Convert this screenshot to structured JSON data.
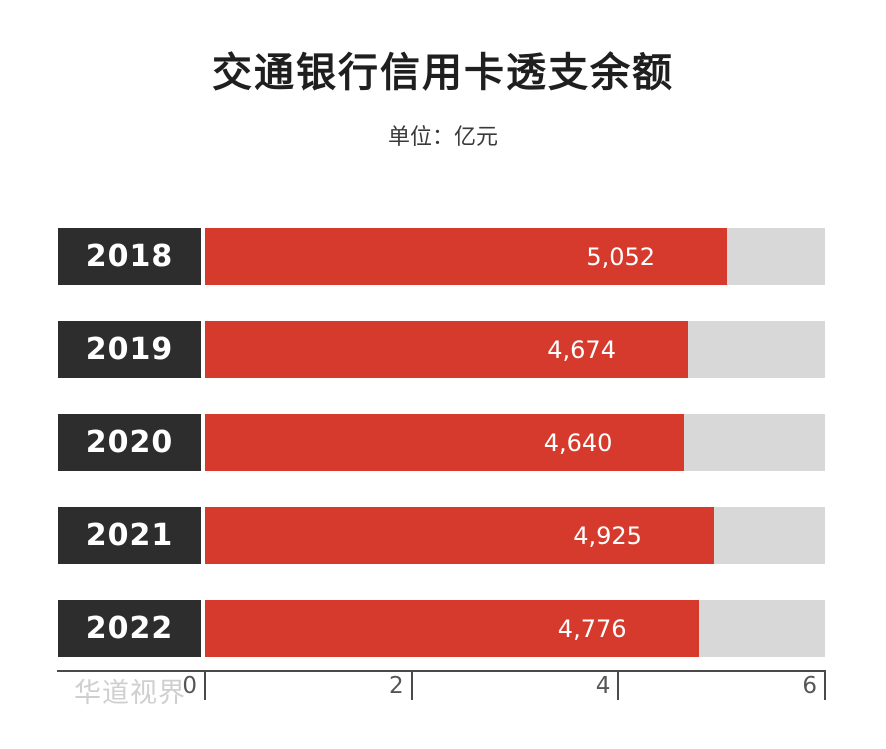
{
  "title": "交通银行信用卡透支余额",
  "unit_label": "单位：亿元",
  "watermark": "华道视界",
  "colors": {
    "bar": "#d63a2c",
    "year_box": "#2d2d2d",
    "track": "#d8d8d8",
    "axis": "#4a4a4a",
    "title_text": "#1f1f1f",
    "value_text": "#ffffff"
  },
  "chart_data": {
    "type": "bar",
    "orientation": "horizontal",
    "title": "交通银行信用卡透支余额",
    "unit": "亿元",
    "categories": [
      "2018",
      "2019",
      "2020",
      "2021",
      "2022"
    ],
    "values": [
      5052,
      4674,
      4640,
      4925,
      4776
    ],
    "value_labels": [
      "5,052",
      "4,674",
      "4,640",
      "4,925",
      "4,776"
    ],
    "xlim": [
      0,
      6000
    ],
    "x_tick_values": [
      0,
      2000,
      4000,
      6000
    ],
    "x_tick_labels": [
      "0",
      "2",
      "4",
      "6"
    ],
    "grid": false,
    "legend": false
  }
}
